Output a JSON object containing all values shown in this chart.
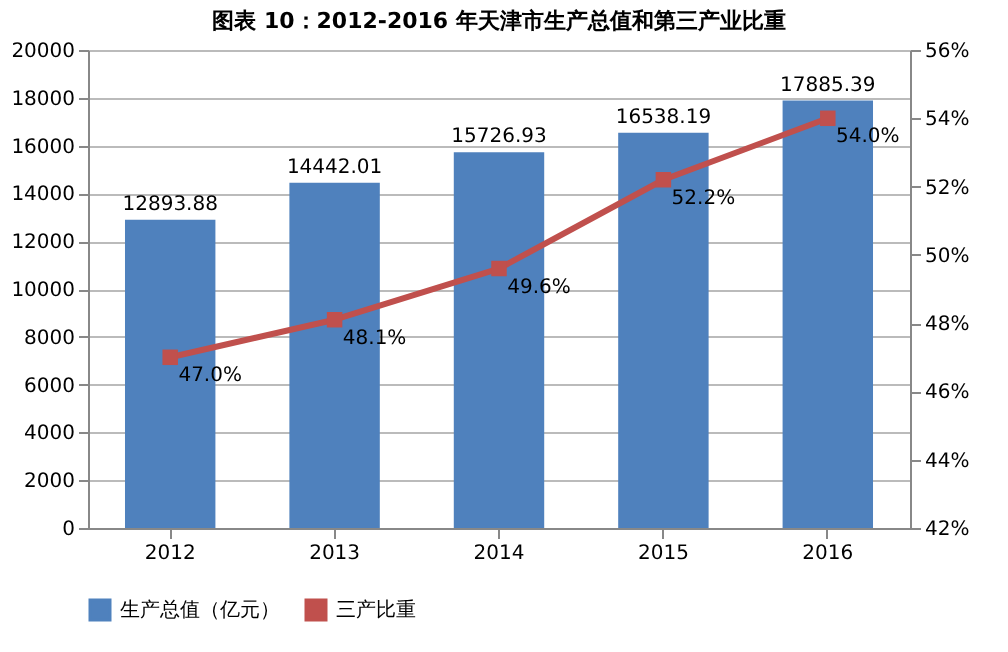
{
  "chart_data": {
    "type": "bar",
    "title": "图表 10：2012-2016 年天津市生产总值和第三产业比重",
    "categories": [
      "2012",
      "2013",
      "2014",
      "2015",
      "2016"
    ],
    "series": [
      {
        "name": "生产总值（亿元）",
        "color": "#4f81bd",
        "values": [
          12893.88,
          14442.01,
          15726.93,
          16538.19,
          17885.39
        ]
      },
      {
        "name": "三产比重",
        "type": "line",
        "axis": "y2",
        "color": "#c0504d",
        "marker": "square",
        "values": [
          47.0,
          48.1,
          49.6,
          52.2,
          54.0
        ],
        "value_labels": [
          "47.0%",
          "48.1%",
          "49.6%",
          "52.2%",
          "54.0%"
        ]
      }
    ],
    "ylim": [
      0,
      20000
    ],
    "yticks": [
      0,
      2000,
      4000,
      6000,
      8000,
      10000,
      12000,
      14000,
      16000,
      18000,
      20000
    ],
    "y2lim": [
      42,
      56
    ],
    "y2ticks": [
      {
        "value": 42,
        "label": "42%"
      },
      {
        "value": 44,
        "label": "44%"
      },
      {
        "value": 46,
        "label": "46%"
      },
      {
        "value": 48,
        "label": "48%"
      },
      {
        "value": 50,
        "label": "50%"
      },
      {
        "value": 52,
        "label": "52%"
      },
      {
        "value": 54,
        "label": "54%"
      },
      {
        "value": 56,
        "label": "56%"
      }
    ],
    "grid": "y",
    "legend": "bottom",
    "data_labels": true
  }
}
